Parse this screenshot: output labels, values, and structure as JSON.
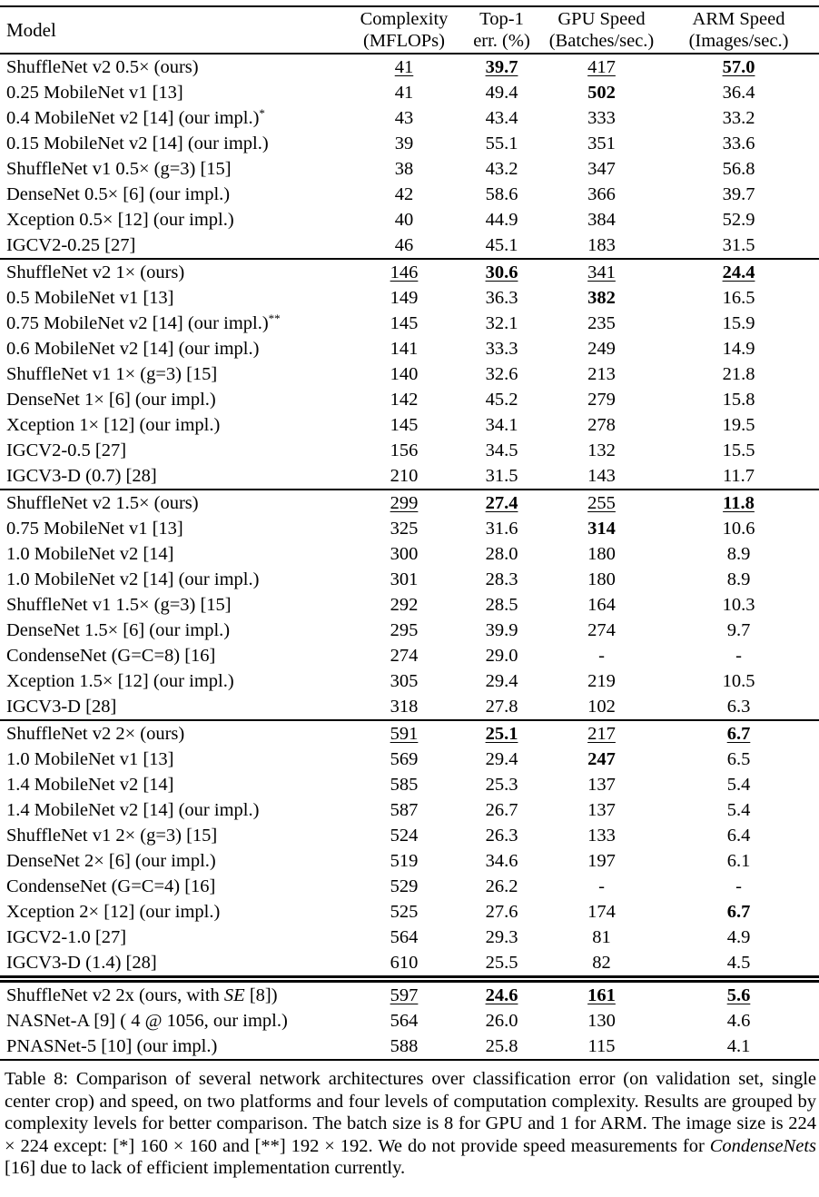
{
  "colors": {
    "text": "#000000",
    "background": "#ffffff",
    "rule": "#000000"
  },
  "table": {
    "header": {
      "model": "Model",
      "columns": [
        {
          "line1": "Complexity",
          "line2": "(MFLOPs)"
        },
        {
          "line1": "Top-1",
          "line2": "err. (%)"
        },
        {
          "line1": "GPU Speed",
          "line2": "(Batches/sec.)"
        },
        {
          "line1": "ARM Speed",
          "line2": "(Images/sec.)"
        }
      ]
    },
    "groups": [
      {
        "rows": [
          {
            "model": [
              {
                "t": "ShuffleNet v2 0.5× (ours)"
              }
            ],
            "cells": [
              {
                "v": "41",
                "s": "u"
              },
              {
                "v": "39.7",
                "s": "bu"
              },
              {
                "v": "417",
                "s": "u"
              },
              {
                "v": "57.0",
                "s": "bu"
              }
            ]
          },
          {
            "model": [
              {
                "t": "0.25 MobileNet v1 [13]"
              }
            ],
            "cells": [
              {
                "v": "41"
              },
              {
                "v": "49.4"
              },
              {
                "v": "502",
                "s": "b"
              },
              {
                "v": "36.4"
              }
            ]
          },
          {
            "model": [
              {
                "t": "0.4 MobileNet v2 [14] (our impl.)"
              },
              {
                "t": "*",
                "sup": true
              }
            ],
            "cells": [
              {
                "v": "43"
              },
              {
                "v": "43.4"
              },
              {
                "v": "333"
              },
              {
                "v": "33.2"
              }
            ]
          },
          {
            "model": [
              {
                "t": "0.15 MobileNet v2 [14] (our impl.)"
              }
            ],
            "cells": [
              {
                "v": "39"
              },
              {
                "v": "55.1"
              },
              {
                "v": "351"
              },
              {
                "v": "33.6"
              }
            ]
          },
          {
            "model": [
              {
                "t": "ShuffleNet v1 0.5× (g=3) [15]"
              }
            ],
            "cells": [
              {
                "v": "38"
              },
              {
                "v": "43.2"
              },
              {
                "v": "347"
              },
              {
                "v": "56.8"
              }
            ]
          },
          {
            "model": [
              {
                "t": "DenseNet 0.5× [6] (our impl.)"
              }
            ],
            "cells": [
              {
                "v": "42"
              },
              {
                "v": "58.6"
              },
              {
                "v": "366"
              },
              {
                "v": "39.7"
              }
            ]
          },
          {
            "model": [
              {
                "t": "Xception 0.5× [12] (our impl.)"
              }
            ],
            "cells": [
              {
                "v": "40"
              },
              {
                "v": "44.9"
              },
              {
                "v": "384"
              },
              {
                "v": "52.9"
              }
            ]
          },
          {
            "model": [
              {
                "t": "IGCV2-0.25 [27]"
              }
            ],
            "cells": [
              {
                "v": "46"
              },
              {
                "v": "45.1"
              },
              {
                "v": "183"
              },
              {
                "v": "31.5"
              }
            ]
          }
        ]
      },
      {
        "rows": [
          {
            "model": [
              {
                "t": "ShuffleNet v2 1× (ours)"
              }
            ],
            "cells": [
              {
                "v": "146",
                "s": "u"
              },
              {
                "v": "30.6",
                "s": "bu"
              },
              {
                "v": "341",
                "s": "u"
              },
              {
                "v": "24.4",
                "s": "bu"
              }
            ]
          },
          {
            "model": [
              {
                "t": "0.5 MobileNet v1 [13]"
              }
            ],
            "cells": [
              {
                "v": "149"
              },
              {
                "v": "36.3"
              },
              {
                "v": "382",
                "s": "b"
              },
              {
                "v": "16.5"
              }
            ]
          },
          {
            "model": [
              {
                "t": "0.75 MobileNet v2 [14] (our impl.)"
              },
              {
                "t": "**",
                "sup": true
              }
            ],
            "cells": [
              {
                "v": "145"
              },
              {
                "v": "32.1"
              },
              {
                "v": "235"
              },
              {
                "v": "15.9"
              }
            ]
          },
          {
            "model": [
              {
                "t": "0.6 MobileNet v2 [14] (our impl.)"
              }
            ],
            "cells": [
              {
                "v": "141"
              },
              {
                "v": "33.3"
              },
              {
                "v": "249"
              },
              {
                "v": "14.9"
              }
            ]
          },
          {
            "model": [
              {
                "t": "ShuffleNet v1 1× (g=3) [15]"
              }
            ],
            "cells": [
              {
                "v": "140"
              },
              {
                "v": "32.6"
              },
              {
                "v": "213"
              },
              {
                "v": "21.8"
              }
            ]
          },
          {
            "model": [
              {
                "t": "DenseNet 1× [6] (our impl.)"
              }
            ],
            "cells": [
              {
                "v": "142"
              },
              {
                "v": "45.2"
              },
              {
                "v": "279"
              },
              {
                "v": "15.8"
              }
            ]
          },
          {
            "model": [
              {
                "t": "Xception 1× [12] (our impl.)"
              }
            ],
            "cells": [
              {
                "v": "145"
              },
              {
                "v": "34.1"
              },
              {
                "v": "278"
              },
              {
                "v": "19.5"
              }
            ]
          },
          {
            "model": [
              {
                "t": "IGCV2-0.5 [27]"
              }
            ],
            "cells": [
              {
                "v": "156"
              },
              {
                "v": "34.5"
              },
              {
                "v": "132"
              },
              {
                "v": "15.5"
              }
            ]
          },
          {
            "model": [
              {
                "t": "IGCV3-D (0.7) [28]"
              }
            ],
            "cells": [
              {
                "v": "210"
              },
              {
                "v": "31.5"
              },
              {
                "v": "143"
              },
              {
                "v": "11.7"
              }
            ]
          }
        ]
      },
      {
        "rows": [
          {
            "model": [
              {
                "t": "ShuffleNet v2 1.5× (ours)"
              }
            ],
            "cells": [
              {
                "v": "299",
                "s": "u"
              },
              {
                "v": "27.4",
                "s": "bu"
              },
              {
                "v": "255",
                "s": "u"
              },
              {
                "v": "11.8",
                "s": "bu"
              }
            ]
          },
          {
            "model": [
              {
                "t": "0.75 MobileNet v1 [13]"
              }
            ],
            "cells": [
              {
                "v": "325"
              },
              {
                "v": "31.6"
              },
              {
                "v": "314",
                "s": "b"
              },
              {
                "v": "10.6"
              }
            ]
          },
          {
            "model": [
              {
                "t": "1.0 MobileNet v2 [14]"
              }
            ],
            "cells": [
              {
                "v": "300"
              },
              {
                "v": "28.0"
              },
              {
                "v": "180"
              },
              {
                "v": "8.9"
              }
            ]
          },
          {
            "model": [
              {
                "t": "1.0 MobileNet v2 [14] (our impl.)"
              }
            ],
            "cells": [
              {
                "v": "301"
              },
              {
                "v": "28.3"
              },
              {
                "v": "180"
              },
              {
                "v": "8.9"
              }
            ]
          },
          {
            "model": [
              {
                "t": "ShuffleNet v1 1.5× (g=3) [15]"
              }
            ],
            "cells": [
              {
                "v": "292"
              },
              {
                "v": "28.5"
              },
              {
                "v": "164"
              },
              {
                "v": "10.3"
              }
            ]
          },
          {
            "model": [
              {
                "t": "DenseNet 1.5× [6] (our impl.)"
              }
            ],
            "cells": [
              {
                "v": "295"
              },
              {
                "v": "39.9"
              },
              {
                "v": "274"
              },
              {
                "v": "9.7"
              }
            ]
          },
          {
            "model": [
              {
                "t": "CondenseNet (G=C=8) [16]"
              }
            ],
            "cells": [
              {
                "v": "274"
              },
              {
                "v": "29.0"
              },
              {
                "v": "-"
              },
              {
                "v": "-"
              }
            ]
          },
          {
            "model": [
              {
                "t": "Xception 1.5× [12] (our impl.)"
              }
            ],
            "cells": [
              {
                "v": "305"
              },
              {
                "v": "29.4"
              },
              {
                "v": "219"
              },
              {
                "v": "10.5"
              }
            ]
          },
          {
            "model": [
              {
                "t": "IGCV3-D [28]"
              }
            ],
            "cells": [
              {
                "v": "318"
              },
              {
                "v": "27.8"
              },
              {
                "v": "102"
              },
              {
                "v": "6.3"
              }
            ]
          }
        ]
      },
      {
        "rows": [
          {
            "model": [
              {
                "t": "ShuffleNet v2 2× (ours)"
              }
            ],
            "cells": [
              {
                "v": "591",
                "s": "u"
              },
              {
                "v": "25.1",
                "s": "bu"
              },
              {
                "v": "217",
                "s": "u"
              },
              {
                "v": "6.7",
                "s": "bu"
              }
            ]
          },
          {
            "model": [
              {
                "t": "1.0 MobileNet v1 [13]"
              }
            ],
            "cells": [
              {
                "v": "569"
              },
              {
                "v": "29.4"
              },
              {
                "v": "247",
                "s": "b"
              },
              {
                "v": "6.5"
              }
            ]
          },
          {
            "model": [
              {
                "t": "1.4 MobileNet v2 [14]"
              }
            ],
            "cells": [
              {
                "v": "585"
              },
              {
                "v": "25.3"
              },
              {
                "v": "137"
              },
              {
                "v": "5.4"
              }
            ]
          },
          {
            "model": [
              {
                "t": "1.4 MobileNet v2 [14] (our impl.)"
              }
            ],
            "cells": [
              {
                "v": "587"
              },
              {
                "v": "26.7"
              },
              {
                "v": "137"
              },
              {
                "v": "5.4"
              }
            ]
          },
          {
            "model": [
              {
                "t": "ShuffleNet v1 2× (g=3) [15]"
              }
            ],
            "cells": [
              {
                "v": "524"
              },
              {
                "v": "26.3"
              },
              {
                "v": "133"
              },
              {
                "v": "6.4"
              }
            ]
          },
          {
            "model": [
              {
                "t": "DenseNet 2× [6] (our impl.)"
              }
            ],
            "cells": [
              {
                "v": "519"
              },
              {
                "v": "34.6"
              },
              {
                "v": "197"
              },
              {
                "v": "6.1"
              }
            ]
          },
          {
            "model": [
              {
                "t": "CondenseNet (G=C=4) [16]"
              }
            ],
            "cells": [
              {
                "v": "529"
              },
              {
                "v": "26.2"
              },
              {
                "v": "-"
              },
              {
                "v": "-"
              }
            ]
          },
          {
            "model": [
              {
                "t": "Xception 2× [12] (our impl.)"
              }
            ],
            "cells": [
              {
                "v": "525"
              },
              {
                "v": "27.6"
              },
              {
                "v": "174"
              },
              {
                "v": "6.7",
                "s": "b"
              }
            ]
          },
          {
            "model": [
              {
                "t": "IGCV2-1.0 [27]"
              }
            ],
            "cells": [
              {
                "v": "564"
              },
              {
                "v": "29.3"
              },
              {
                "v": "81"
              },
              {
                "v": "4.9"
              }
            ]
          },
          {
            "model": [
              {
                "t": "IGCV3-D (1.4) [28]"
              }
            ],
            "cells": [
              {
                "v": "610"
              },
              {
                "v": "25.5"
              },
              {
                "v": "82"
              },
              {
                "v": "4.5"
              }
            ]
          }
        ]
      },
      {
        "rows": [
          {
            "model": [
              {
                "t": "ShuffleNet v2 2x (ours, with "
              },
              {
                "t": "SE",
                "i": true
              },
              {
                "t": " [8])"
              }
            ],
            "cells": [
              {
                "v": "597",
                "s": "u"
              },
              {
                "v": "24.6",
                "s": "bu"
              },
              {
                "v": "161",
                "s": "bu"
              },
              {
                "v": "5.6",
                "s": "bu"
              }
            ]
          },
          {
            "model": [
              {
                "t": "NASNet-A [9] ( 4 @ 1056, our impl.)"
              }
            ],
            "cells": [
              {
                "v": "564"
              },
              {
                "v": "26.0"
              },
              {
                "v": "130"
              },
              {
                "v": "4.6"
              }
            ]
          },
          {
            "model": [
              {
                "t": "PNASNet-5 [10] (our impl.)"
              }
            ],
            "cells": [
              {
                "v": "588"
              },
              {
                "v": "25.8"
              },
              {
                "v": "115"
              },
              {
                "v": "4.1"
              }
            ]
          }
        ]
      }
    ]
  },
  "caption": {
    "parts": [
      {
        "t": "Table 8: Comparison of several network architectures over classification error (on validation set, single center crop) and speed, on two platforms and four levels of computation complexity. Results are grouped by complexity levels for better comparison. The batch size is 8 for GPU and 1 for ARM. The image size is 224 × 224 except: [*] 160 × 160 and [**] 192 × 192. We do not provide speed measurements for "
      },
      {
        "t": "CondenseNets",
        "i": true
      },
      {
        "t": " [16] due to lack of efficient implementation currently."
      }
    ]
  }
}
